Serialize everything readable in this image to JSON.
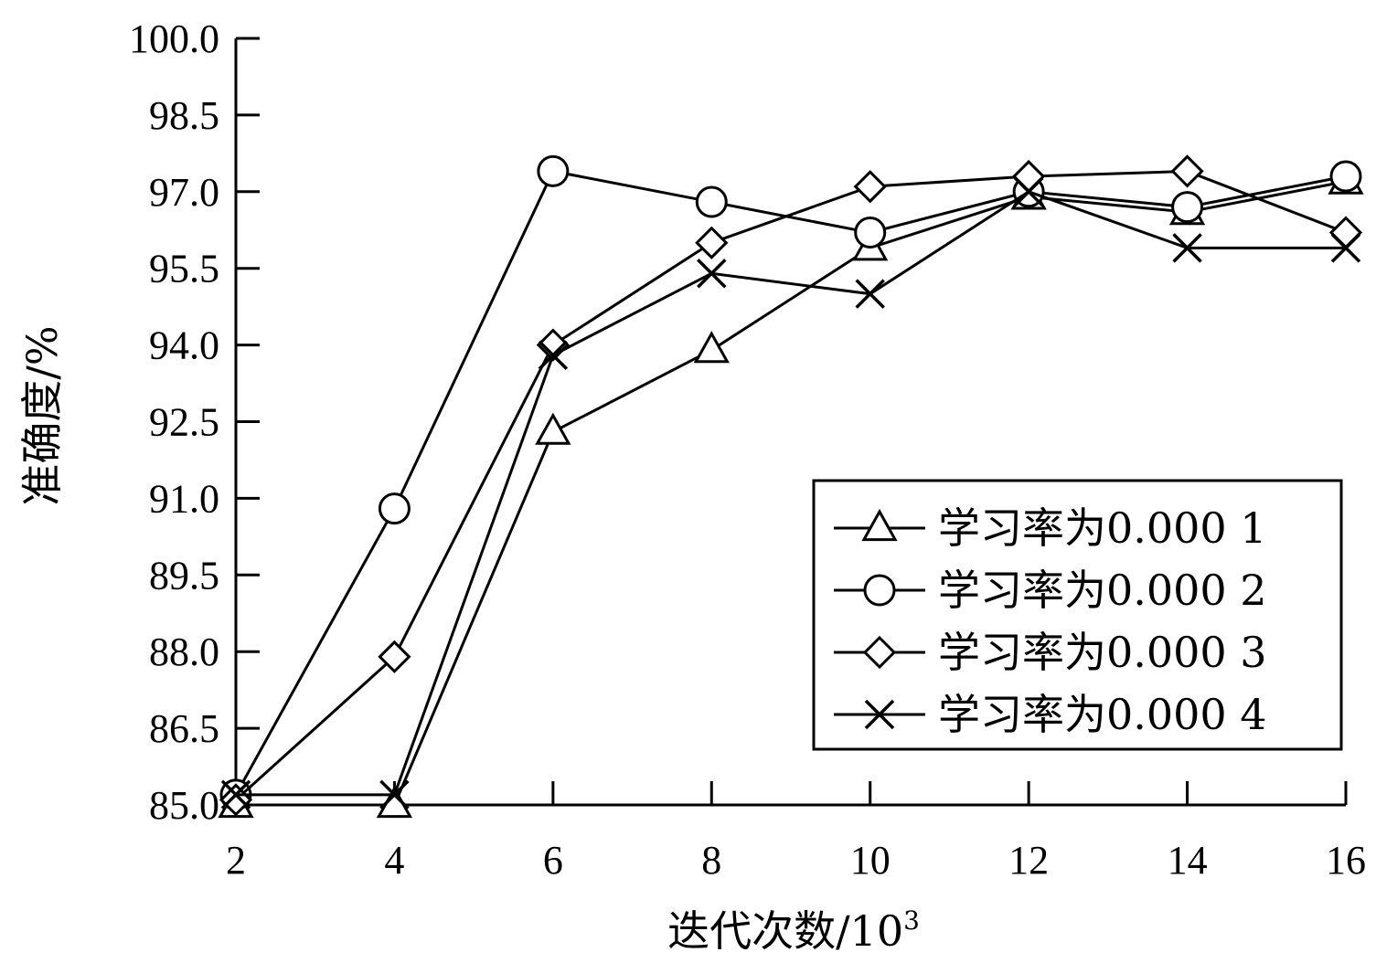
{
  "chart_data": {
    "type": "line",
    "xlabel": "迭代次数/10",
    "xlabel_sup": "3",
    "ylabel": "准确度/%",
    "x": [
      2,
      4,
      6,
      8,
      10,
      12,
      14,
      16
    ],
    "xlim": [
      2,
      16
    ],
    "ylim": [
      85.0,
      100.0
    ],
    "x_ticks": [
      "2",
      "4",
      "6",
      "8",
      "10",
      "12",
      "14",
      "16"
    ],
    "y_ticks": [
      "85.0",
      "86.5",
      "88.0",
      "89.5",
      "91.0",
      "92.5",
      "94.0",
      "95.5",
      "97.0",
      "98.5",
      "100.0"
    ],
    "grid": false,
    "legend_position": "lower-right",
    "series": [
      {
        "name": "学习率为0.000 1",
        "marker": "triangle",
        "values": [
          85.0,
          85.0,
          92.3,
          93.9,
          95.9,
          96.9,
          96.6,
          97.2
        ]
      },
      {
        "name": "学习率为0.000 2",
        "marker": "circle",
        "values": [
          85.2,
          90.8,
          97.4,
          96.8,
          96.2,
          97.0,
          96.7,
          97.3
        ]
      },
      {
        "name": "学习率为0.000 3",
        "marker": "diamond",
        "values": [
          85.1,
          87.9,
          94.0,
          96.0,
          97.1,
          97.3,
          97.4,
          96.2
        ]
      },
      {
        "name": "学习率为0.000 4",
        "marker": "x",
        "values": [
          85.2,
          85.2,
          93.8,
          95.4,
          95.0,
          97.0,
          95.9,
          95.9
        ]
      }
    ]
  }
}
